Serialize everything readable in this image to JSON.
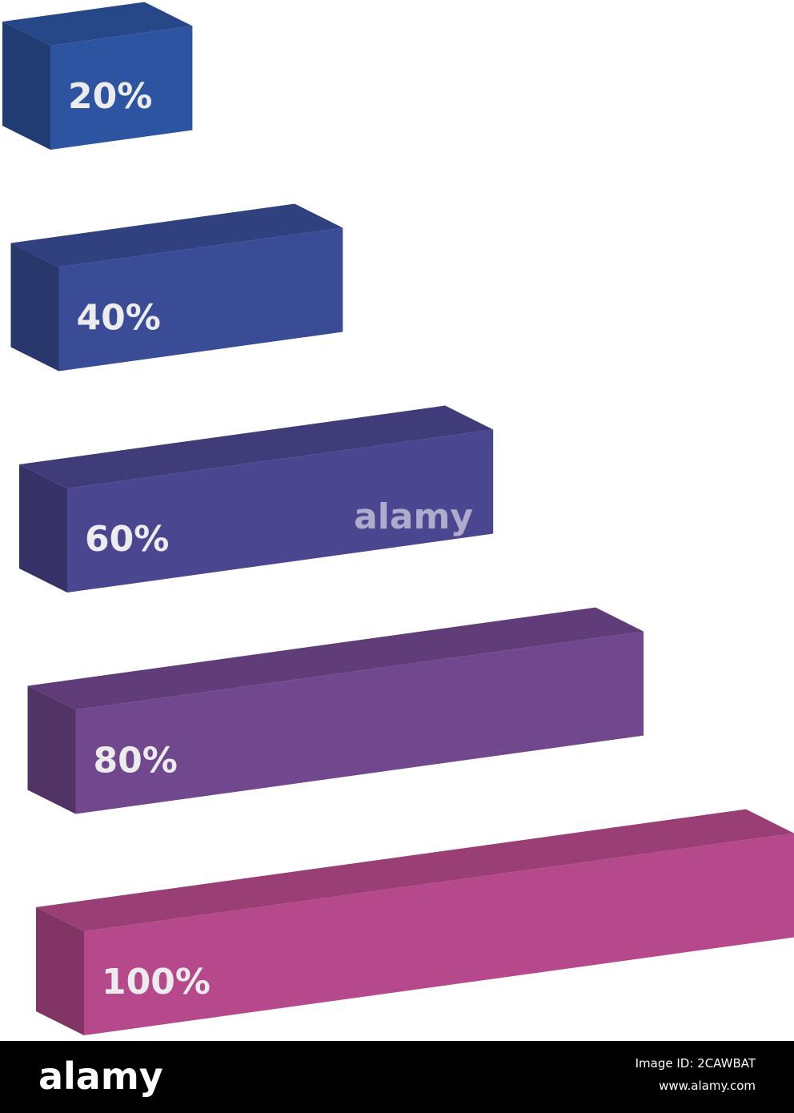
{
  "chart_data": {
    "type": "bar3d",
    "categories": [
      null,
      null,
      null,
      null,
      null
    ],
    "values": [
      20,
      40,
      60,
      80,
      100
    ],
    "value_labels": [
      "20%",
      "40%",
      "60%",
      "80%",
      "100%"
    ],
    "colors": [
      "#2d54a0",
      "#3a4c96",
      "#4b4690",
      "#71478d",
      "#b5498b"
    ],
    "watermark": "alamy"
  },
  "footer": {
    "brand": "alamy",
    "image_id": "Image ID: 2CAWBAT",
    "url": "www.alamy.com"
  }
}
